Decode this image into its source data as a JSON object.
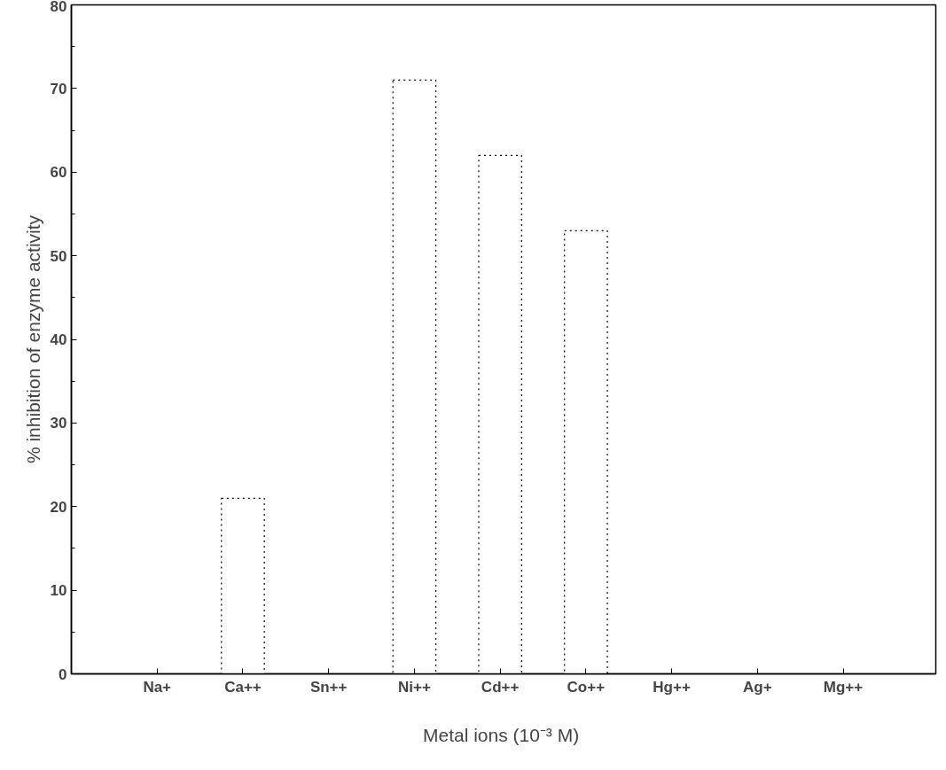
{
  "chart_data": {
    "type": "bar",
    "xlabel": "Metal ions  (10⁻³ M)",
    "ylabel": "% inhibition of enzyme activity",
    "categories": [
      "Na+",
      "Ca++",
      "Sn++",
      "Ni++",
      "Cd++",
      "Co++",
      "Hg++",
      "Ag+",
      "Mg++"
    ],
    "values": [
      0,
      21,
      0,
      71,
      62,
      53,
      0,
      0,
      0
    ],
    "color": "#000000",
    "line_style": "dotted",
    "ylim": [
      0,
      80
    ],
    "yticks": [
      0,
      10,
      20,
      30,
      40,
      50,
      60,
      70,
      80
    ]
  }
}
